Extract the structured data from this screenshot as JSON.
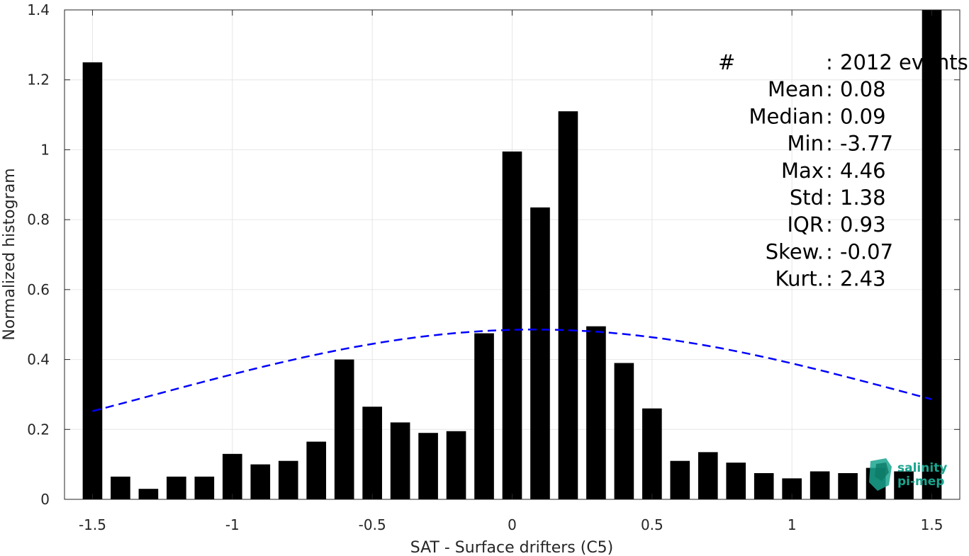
{
  "chart_data": {
    "type": "bar",
    "xlabel": "SAT - Surface drifters (C5)",
    "ylabel": "Normalized histogram",
    "xlim": [
      -1.6,
      1.6
    ],
    "ylim": [
      0,
      1.4
    ],
    "xticks": [
      -1.5,
      -1,
      -0.5,
      0,
      0.5,
      1,
      1.5
    ],
    "xtick_labels": [
      "-1.5",
      "-1",
      "-0.5",
      "0",
      "0.5",
      "1",
      "1.5"
    ],
    "yticks": [
      0,
      0.2,
      0.4,
      0.6,
      0.8,
      1,
      1.2,
      1.4
    ],
    "ytick_labels": [
      "0",
      "0.2",
      "0.4",
      "0.6",
      "0.8",
      "1",
      "1.2",
      "1.4"
    ],
    "grid": true,
    "bar_width": 0.07,
    "bar_color": "#000000",
    "bins": [
      -1.5,
      -1.4,
      -1.3,
      -1.2,
      -1.1,
      -1.0,
      -0.9,
      -0.8,
      -0.7,
      -0.6,
      -0.5,
      -0.4,
      -0.3,
      -0.2,
      -0.1,
      0.0,
      0.1,
      0.2,
      0.3,
      0.4,
      0.5,
      0.6,
      0.7,
      0.8,
      0.9,
      1.0,
      1.1,
      1.2,
      1.3,
      1.4,
      1.5
    ],
    "values": [
      1.25,
      0.065,
      0.03,
      0.065,
      0.065,
      0.13,
      0.1,
      0.11,
      0.165,
      0.4,
      0.265,
      0.22,
      0.19,
      0.195,
      0.475,
      0.995,
      0.835,
      1.11,
      0.495,
      0.39,
      0.26,
      0.11,
      0.135,
      0.105,
      0.075,
      0.06,
      0.08,
      0.075,
      0.09,
      0.08,
      1.4
    ],
    "fit_curve": {
      "type": "normal",
      "mean": 0.08,
      "std": 1.38,
      "x_range": [
        -1.5,
        1.5
      ],
      "color": "#0000ff",
      "style": "dashed"
    },
    "annotations": [
      {
        "label": "#",
        "sep": ":",
        "value": "2012 events"
      },
      {
        "label": "Mean",
        "sep": ":",
        "value": "0.08"
      },
      {
        "label": "Median",
        "sep": ":",
        "value": "0.09"
      },
      {
        "label": "Min",
        "sep": ":",
        "value": "-3.77"
      },
      {
        "label": "Max",
        "sep": ":",
        "value": "4.46"
      },
      {
        "label": "Std",
        "sep": ":",
        "value": "1.38"
      },
      {
        "label": "IQR",
        "sep": ":",
        "value": "0.93"
      },
      {
        "label": "Skew.",
        "sep": ":",
        "value": "-0.07"
      },
      {
        "label": "Kurt.",
        "sep": ":",
        "value": "2.43"
      }
    ]
  },
  "logo": {
    "line1": "salinity",
    "line2": "pi-mep",
    "color": "#1aa58f"
  }
}
